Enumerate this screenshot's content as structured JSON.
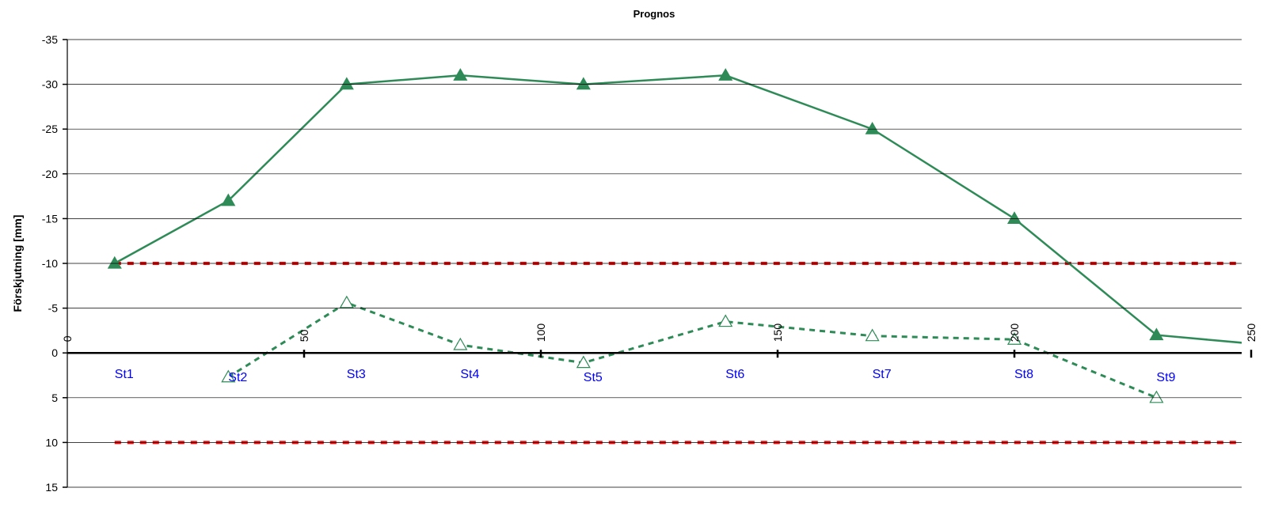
{
  "chart_data": {
    "type": "line",
    "title": "Prognos",
    "y_label": "Förskjutning [mm]",
    "x": [
      10,
      34,
      59,
      83,
      109,
      139,
      170,
      200,
      230,
      255
    ],
    "labels": [
      "St1",
      "St2",
      "St3",
      "St4",
      "St5",
      "St6",
      "St7",
      "St8",
      "St9",
      null
    ],
    "label_color": "#0000ff",
    "series": [
      {
        "color": "#2e8b57",
        "style": "solid",
        "marker": "filled-triangle",
        "values": [
          -10,
          -17,
          -30,
          -31,
          -30,
          -31,
          -25,
          -15,
          -2,
          -0.8
        ]
      },
      {
        "color": "#2e8b57",
        "style": "dashed",
        "marker": "open-triangle",
        "values": [
          null,
          2.7,
          -5.6,
          -0.9,
          1.1,
          -3.5,
          -1.9,
          -1.5,
          5,
          null
        ]
      }
    ],
    "limit_lines": [
      {
        "color": "#ff0000",
        "x": [
          10,
          255
        ],
        "values": [
          -10,
          -10
        ]
      },
      {
        "color": "#ff0000",
        "x": [
          10,
          255
        ],
        "values": [
          10,
          10
        ]
      }
    ],
    "xlim": [
      0,
      250
    ],
    "xticks": [
      0,
      50,
      100,
      150,
      200,
      250
    ],
    "ylim": [
      15,
      -35
    ],
    "yticks": [
      -35,
      -30,
      -25,
      -20,
      -15,
      -10,
      -5,
      0,
      5,
      10,
      15
    ],
    "grid": true
  }
}
